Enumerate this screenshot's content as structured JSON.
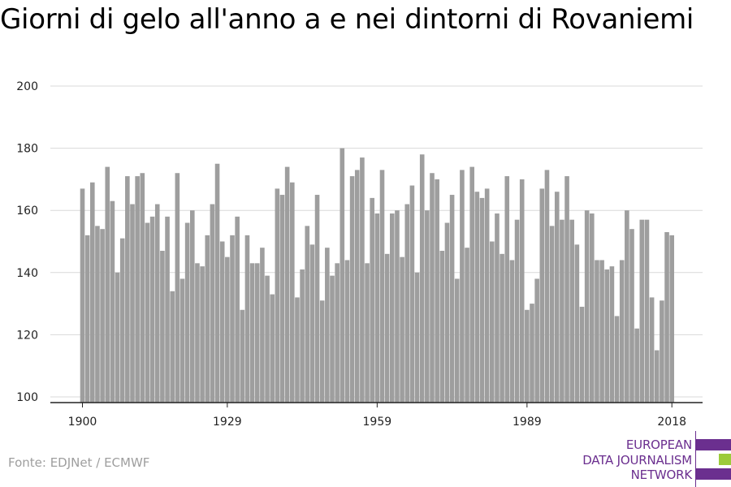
{
  "chart_data": {
    "type": "bar",
    "title": "Giorni di gelo all'anno a e nei dintorni di Rovaniemi",
    "xlabel": "",
    "ylabel": "",
    "ylim": [
      100,
      200
    ],
    "yticks": [
      100,
      120,
      140,
      160,
      180,
      200
    ],
    "xticks": [
      1900,
      1929,
      1959,
      1989,
      2018
    ],
    "grid": true,
    "bar_color": "#9e9e9e",
    "x_start": 1900,
    "values": [
      167,
      152,
      169,
      155,
      154,
      174,
      163,
      140,
      151,
      171,
      162,
      171,
      172,
      156,
      158,
      162,
      147,
      158,
      134,
      172,
      138,
      156,
      160,
      143,
      142,
      152,
      162,
      175,
      150,
      145,
      152,
      158,
      128,
      152,
      143,
      143,
      148,
      139,
      133,
      167,
      165,
      174,
      169,
      132,
      141,
      155,
      149,
      165,
      131,
      148,
      139,
      143,
      180,
      144,
      171,
      173,
      177,
      143,
      164,
      159,
      173,
      146,
      159,
      160,
      145,
      162,
      168,
      140,
      178,
      160,
      172,
      170,
      147,
      156,
      165,
      138,
      173,
      148,
      174,
      166,
      164,
      167,
      150,
      159,
      146,
      171,
      144,
      157,
      170,
      128,
      130,
      138,
      167,
      173,
      155,
      166,
      157,
      171,
      157,
      149,
      129,
      160,
      159,
      144,
      144,
      141,
      142,
      126,
      144,
      160,
      154,
      122,
      157,
      157,
      132,
      115,
      131,
      153,
      152
    ]
  },
  "source": "Fonte: EDJNet / ECMWF",
  "logo": {
    "lines": [
      "EUROPEAN",
      "DATA JOURNALISM",
      "NETWORK"
    ],
    "colors": [
      "#6b2f8f",
      "#9ccb3b",
      "#6b2f8f"
    ]
  }
}
